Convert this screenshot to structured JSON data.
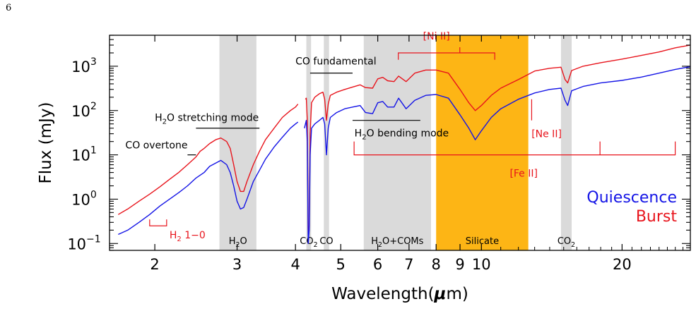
{
  "page_number": "6",
  "chart_data": {
    "type": "line",
    "xlabel_text": "Wavelength(",
    "xlabel_mu": "μ",
    "xlabel_unit": "m)",
    "ylabel": "Flux (mJy)",
    "x_scale": "log",
    "y_scale": "log",
    "xlim": [
      1.6,
      28
    ],
    "ylim": [
      0.07,
      5000
    ],
    "x_ticks": [
      {
        "value": 2,
        "label": "2"
      },
      {
        "value": 3,
        "label": "3"
      },
      {
        "value": 4,
        "label": "4"
      },
      {
        "value": 5,
        "label": "5"
      },
      {
        "value": 6,
        "label": "6"
      },
      {
        "value": 7,
        "label": "7"
      },
      {
        "value": 8,
        "label": "8"
      },
      {
        "value": 9,
        "label": "9"
      },
      {
        "value": 10,
        "label": "10"
      },
      {
        "value": 20,
        "label": "20"
      }
    ],
    "y_ticks": [
      {
        "value": 0.1,
        "base": "10",
        "exp": "−1"
      },
      {
        "value": 1,
        "base": "10",
        "exp": "0"
      },
      {
        "value": 10,
        "base": "10",
        "exp": "1"
      },
      {
        "value": 100,
        "base": "10",
        "exp": "2"
      },
      {
        "value": 1000,
        "base": "10",
        "exp": "3"
      }
    ],
    "legend_placement": "bottom-right",
    "colors": {
      "burst": "#e8141c",
      "quiescence": "#1414e6",
      "ice_band": "#dadada",
      "silicate_band": "#fdb515",
      "text": "#000000"
    },
    "shaded_bands": [
      {
        "name": "H2O",
        "label_main": "H",
        "label_sub": "2",
        "label_tail": "O",
        "x_range": [
          2.75,
          3.3
        ],
        "color": "#dadada"
      },
      {
        "name": "CO2",
        "label_main": "CO",
        "label_sub": "2",
        "label_tail": "",
        "x_range": [
          4.22,
          4.32
        ],
        "color": "#dadada"
      },
      {
        "name": "CO",
        "label_main": "CO",
        "label_sub": "",
        "label_tail": "",
        "x_range": [
          4.6,
          4.72
        ],
        "color": "#dadada"
      },
      {
        "name": "H2O+COMs",
        "label_main": "H",
        "label_sub": "2",
        "label_tail": "O+COMs",
        "x_range": [
          5.6,
          7.8
        ],
        "color": "#dadada"
      },
      {
        "name": "Silicate",
        "label_main": "Silicate",
        "label_sub": "",
        "label_tail": "",
        "x_range": [
          8.0,
          12.6
        ],
        "color": "#fdb515"
      },
      {
        "name": "CO2 15",
        "label_main": "CO",
        "label_sub": "2",
        "label_tail": "",
        "x_range": [
          14.8,
          15.6
        ],
        "color": "#dadada"
      }
    ],
    "series": [
      {
        "name": "Burst",
        "color": "#e8141c",
        "segments": [
          [
            [
              1.67,
              0.45
            ],
            [
              1.75,
              0.6
            ],
            [
              1.85,
              0.9
            ],
            [
              1.95,
              1.3
            ],
            [
              2.05,
              1.9
            ],
            [
              2.15,
              2.8
            ],
            [
              2.25,
              4.0
            ],
            [
              2.35,
              6.0
            ],
            [
              2.45,
              9.0
            ],
            [
              2.5,
              12
            ],
            [
              2.55,
              14
            ],
            [
              2.62,
              18
            ],
            [
              2.7,
              22
            ],
            [
              2.77,
              24
            ],
            [
              2.85,
              20
            ],
            [
              2.9,
              14
            ],
            [
              2.95,
              6
            ],
            [
              3.0,
              2.5
            ],
            [
              3.05,
              1.5
            ],
            [
              3.1,
              1.5
            ],
            [
              3.15,
              2.5
            ],
            [
              3.25,
              6
            ],
            [
              3.35,
              12
            ],
            [
              3.45,
              22
            ],
            [
              3.6,
              40
            ],
            [
              3.75,
              70
            ],
            [
              3.9,
              100
            ],
            [
              4.0,
              120
            ],
            [
              4.05,
              140
            ]
          ],
          [
            [
              4.2,
              180
            ],
            [
              4.22,
              190
            ],
            [
              4.24,
              60
            ],
            [
              4.26,
              0.15
            ],
            [
              4.28,
              0.25
            ],
            [
              4.3,
              30
            ],
            [
              4.33,
              150
            ],
            [
              4.4,
              200
            ],
            [
              4.5,
              240
            ],
            [
              4.58,
              260
            ],
            [
              4.62,
              180
            ],
            [
              4.66,
              60
            ],
            [
              4.7,
              140
            ],
            [
              4.75,
              220
            ],
            [
              4.9,
              260
            ],
            [
              5.1,
              300
            ],
            [
              5.3,
              340
            ],
            [
              5.5,
              380
            ],
            [
              5.65,
              330
            ],
            [
              5.85,
              320
            ],
            [
              6.0,
              520
            ],
            [
              6.15,
              560
            ],
            [
              6.3,
              470
            ],
            [
              6.5,
              450
            ],
            [
              6.65,
              600
            ],
            [
              6.9,
              450
            ],
            [
              7.2,
              700
            ],
            [
              7.6,
              820
            ],
            [
              8.0,
              820
            ],
            [
              8.5,
              700
            ],
            [
              9.0,
              300
            ],
            [
              9.4,
              150
            ],
            [
              9.7,
              100
            ],
            [
              10.0,
              130
            ],
            [
              10.5,
              220
            ],
            [
              11.0,
              320
            ],
            [
              12.0,
              500
            ],
            [
              13.0,
              780
            ],
            [
              14.0,
              900
            ],
            [
              14.8,
              950
            ],
            [
              15.1,
              500
            ],
            [
              15.3,
              420
            ],
            [
              15.6,
              800
            ],
            [
              16.5,
              1000
            ],
            [
              18.0,
              1200
            ],
            [
              20.0,
              1450
            ],
            [
              22.0,
              1750
            ],
            [
              24.0,
              2100
            ],
            [
              26.0,
              2600
            ],
            [
              28.0,
              3000
            ]
          ]
        ]
      },
      {
        "name": "Quiescence",
        "color": "#1414e6",
        "segments": [
          [
            [
              1.67,
              0.16
            ],
            [
              1.75,
              0.2
            ],
            [
              1.85,
              0.3
            ],
            [
              1.95,
              0.45
            ],
            [
              2.05,
              0.7
            ],
            [
              2.15,
              1.0
            ],
            [
              2.25,
              1.4
            ],
            [
              2.35,
              2.0
            ],
            [
              2.45,
              3.0
            ],
            [
              2.55,
              4.0
            ],
            [
              2.62,
              5.5
            ],
            [
              2.7,
              6.5
            ],
            [
              2.77,
              7.5
            ],
            [
              2.85,
              6.0
            ],
            [
              2.9,
              4.0
            ],
            [
              2.95,
              2.0
            ],
            [
              3.0,
              0.9
            ],
            [
              3.05,
              0.6
            ],
            [
              3.1,
              0.65
            ],
            [
              3.15,
              1.0
            ],
            [
              3.25,
              2.5
            ],
            [
              3.35,
              4.5
            ],
            [
              3.45,
              8
            ],
            [
              3.6,
              15
            ],
            [
              3.75,
              25
            ],
            [
              3.9,
              40
            ],
            [
              4.0,
              50
            ],
            [
              4.05,
              55
            ]
          ],
          [
            [
              4.18,
              40
            ],
            [
              4.22,
              60
            ],
            [
              4.24,
              20
            ],
            [
              4.26,
              0.1
            ],
            [
              4.28,
              0.2
            ],
            [
              4.3,
              10
            ],
            [
              4.33,
              40
            ],
            [
              4.4,
              50
            ],
            [
              4.5,
              60
            ],
            [
              4.58,
              70
            ],
            [
              4.62,
              50
            ],
            [
              4.66,
              10
            ],
            [
              4.7,
              40
            ],
            [
              4.75,
              70
            ],
            [
              4.9,
              90
            ],
            [
              5.1,
              110
            ],
            [
              5.3,
              120
            ],
            [
              5.5,
              130
            ],
            [
              5.65,
              90
            ],
            [
              5.85,
              85
            ],
            [
              6.0,
              150
            ],
            [
              6.15,
              160
            ],
            [
              6.3,
              120
            ],
            [
              6.5,
              120
            ],
            [
              6.65,
              190
            ],
            [
              6.9,
              110
            ],
            [
              7.2,
              170
            ],
            [
              7.6,
              220
            ],
            [
              8.0,
              230
            ],
            [
              8.5,
              190
            ],
            [
              9.0,
              80
            ],
            [
              9.4,
              40
            ],
            [
              9.7,
              22
            ],
            [
              10.0,
              35
            ],
            [
              10.5,
              70
            ],
            [
              11.0,
              110
            ],
            [
              12.0,
              180
            ],
            [
              13.0,
              250
            ],
            [
              14.0,
              300
            ],
            [
              14.8,
              320
            ],
            [
              15.1,
              170
            ],
            [
              15.3,
              130
            ],
            [
              15.6,
              280
            ],
            [
              16.5,
              350
            ],
            [
              18.0,
              420
            ],
            [
              20.0,
              480
            ],
            [
              22.0,
              570
            ],
            [
              24.0,
              700
            ],
            [
              26.0,
              850
            ],
            [
              28.0,
              980
            ]
          ]
        ]
      }
    ],
    "annotations": [
      {
        "id": "co-overtone",
        "text": "CO overtone",
        "color": "#000000",
        "x": 1.73,
        "y": 14,
        "line": [
          [
            2.35,
            10
          ],
          [
            2.45,
            10
          ]
        ]
      },
      {
        "id": "h2o-stretching",
        "text_main": "H",
        "text_sub": "2",
        "text_tail": "O stretching mode",
        "color": "#000000",
        "x": 2.0,
        "y": 58,
        "line": [
          [
            2.45,
            40
          ],
          [
            3.35,
            40
          ]
        ]
      },
      {
        "id": "co-fundamental",
        "text": "CO fundamental",
        "color": "#000000",
        "x": 4.0,
        "y": 1100,
        "line": [
          [
            4.3,
            700
          ],
          [
            5.3,
            700
          ]
        ]
      },
      {
        "id": "h2o-bending",
        "text_main": "H",
        "text_sub": "2",
        "text_tail": "O bending mode",
        "color": "#000000",
        "x": 5.35,
        "y": 26,
        "line": [
          [
            5.3,
            60
          ],
          [
            7.4,
            60
          ]
        ]
      },
      {
        "id": "h2-1-0",
        "text_main": "H",
        "text_sub": "2",
        "text_tail": " 1−0",
        "color": "#e8141c",
        "x": 2.15,
        "y": 0.13
      },
      {
        "id": "ni-ii",
        "text": "[Ni II]",
        "color": "#e8141c",
        "x": 7.5,
        "y": 4000
      },
      {
        "id": "ne-ii",
        "text": "[Ne II]",
        "color": "#e8141c",
        "x": 12.8,
        "y": 25
      },
      {
        "id": "fe-ii",
        "text": "[Fe II]",
        "color": "#e8141c",
        "x": 11.5,
        "y": 3.2
      }
    ],
    "line_markers": {
      "h2": {
        "x_range": [
          1.95,
          2.12
        ],
        "x_tick": 1.957,
        "y_top": 0.35,
        "y_bottom": 0.25
      },
      "ni_ii": {
        "x_range": [
          6.64,
          10.68
        ],
        "x_tick": 8.99,
        "y_top": 2000,
        "y_bottom": 1400
      },
      "ne_ii": {
        "x": 12.81,
        "y_top": 180,
        "y_bottom": 60
      },
      "fe_ii": {
        "x_range": [
          5.34,
          25.99
        ],
        "ticks": [
          5.34,
          17.94,
          25.99
        ],
        "y_top": 10,
        "y_bottom": 20
      }
    },
    "legend": [
      {
        "label": "Quiescence",
        "color": "#1414e6"
      },
      {
        "label": "Burst",
        "color": "#e8141c"
      }
    ]
  }
}
